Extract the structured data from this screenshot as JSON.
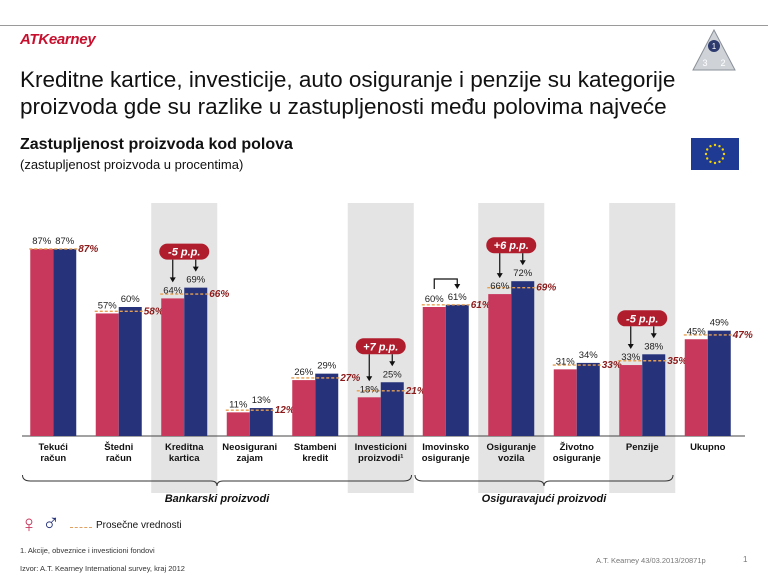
{
  "header": {
    "logo": "ATKearney",
    "title_line1": "Kreditne kartice, investicije, auto osiguranje i penzije su kategorije",
    "title_line2": "proizvoda gde su razlike u zastupljenosti među polovima najveće",
    "corner_badge": [
      "1",
      "3",
      "2"
    ]
  },
  "chart_heading": "Zastupljenost proizvoda kod polova",
  "chart_subheading": "(zastupljenost proizvoda u procentima)",
  "legend": {
    "female_symbol": "♀",
    "male_symbol": "♂",
    "average_label": "Prosečne vrednosti"
  },
  "footnote": "1.   Akcije, obveznice i investicioni fondovi",
  "source": "Izvor: A.T. Kearney International survey, kraj 2012",
  "reference": "A.T. Kearney 43/03.2013/20871p",
  "page_number": "1",
  "colors": {
    "female": "#c8385d",
    "male": "#26337a",
    "average": "#e8a050",
    "avg_label": "#8b1a1a",
    "highlight": "#e4e4e4",
    "callout": "#b01e2e"
  },
  "chart_data": {
    "type": "bar",
    "ylim": [
      0,
      100
    ],
    "categories": [
      "Tekući račun",
      "Štedni račun",
      "Kreditna kartica",
      "Neosigurani zajam",
      "Stambeni kredit",
      "Investicioni proizvodi",
      "Imovinsko osiguranje",
      "Osiguranje vozila",
      "Životno osiguranje",
      "Penzije",
      "Ukupno"
    ],
    "category_label_lines": [
      [
        "Tekući",
        "račun"
      ],
      [
        "Štedni",
        "račun"
      ],
      [
        "Kreditna",
        "kartica"
      ],
      [
        "Neosigurani",
        "zajam"
      ],
      [
        "Stambeni",
        "kredit"
      ],
      [
        "Investicioni",
        "proizvodi¹"
      ],
      [
        "Imovinsko",
        "osiguranje"
      ],
      [
        "Osiguranje",
        "vozila"
      ],
      [
        "Životno",
        "osiguranje"
      ],
      [
        "Penzije"
      ],
      [
        "Ukupno"
      ]
    ],
    "series": [
      {
        "name": "♀",
        "values": [
          87,
          57,
          64,
          11,
          26,
          18,
          60,
          66,
          31,
          33,
          45
        ]
      },
      {
        "name": "♂",
        "values": [
          87,
          60,
          69,
          13,
          29,
          25,
          61,
          72,
          34,
          38,
          49
        ]
      }
    ],
    "average": {
      "name": "Prosečne vrednosti",
      "values": [
        87,
        58,
        66,
        12,
        27,
        21,
        61,
        69,
        33,
        35,
        47
      ]
    },
    "highlighted": [
      2,
      5,
      7,
      9
    ],
    "callouts": [
      {
        "category": 2,
        "label": "-5 p.p."
      },
      {
        "category": 5,
        "label": "+7 p.p."
      },
      {
        "category": 7,
        "label": "+6 p.p."
      },
      {
        "category": 9,
        "label": "-5 p.p."
      }
    ],
    "groups": [
      {
        "label": "Bankarski proizvodi",
        "from": 0,
        "to": 5
      },
      {
        "label": "Osiguravajući proizvodi",
        "from": 6,
        "to": 9
      }
    ]
  }
}
